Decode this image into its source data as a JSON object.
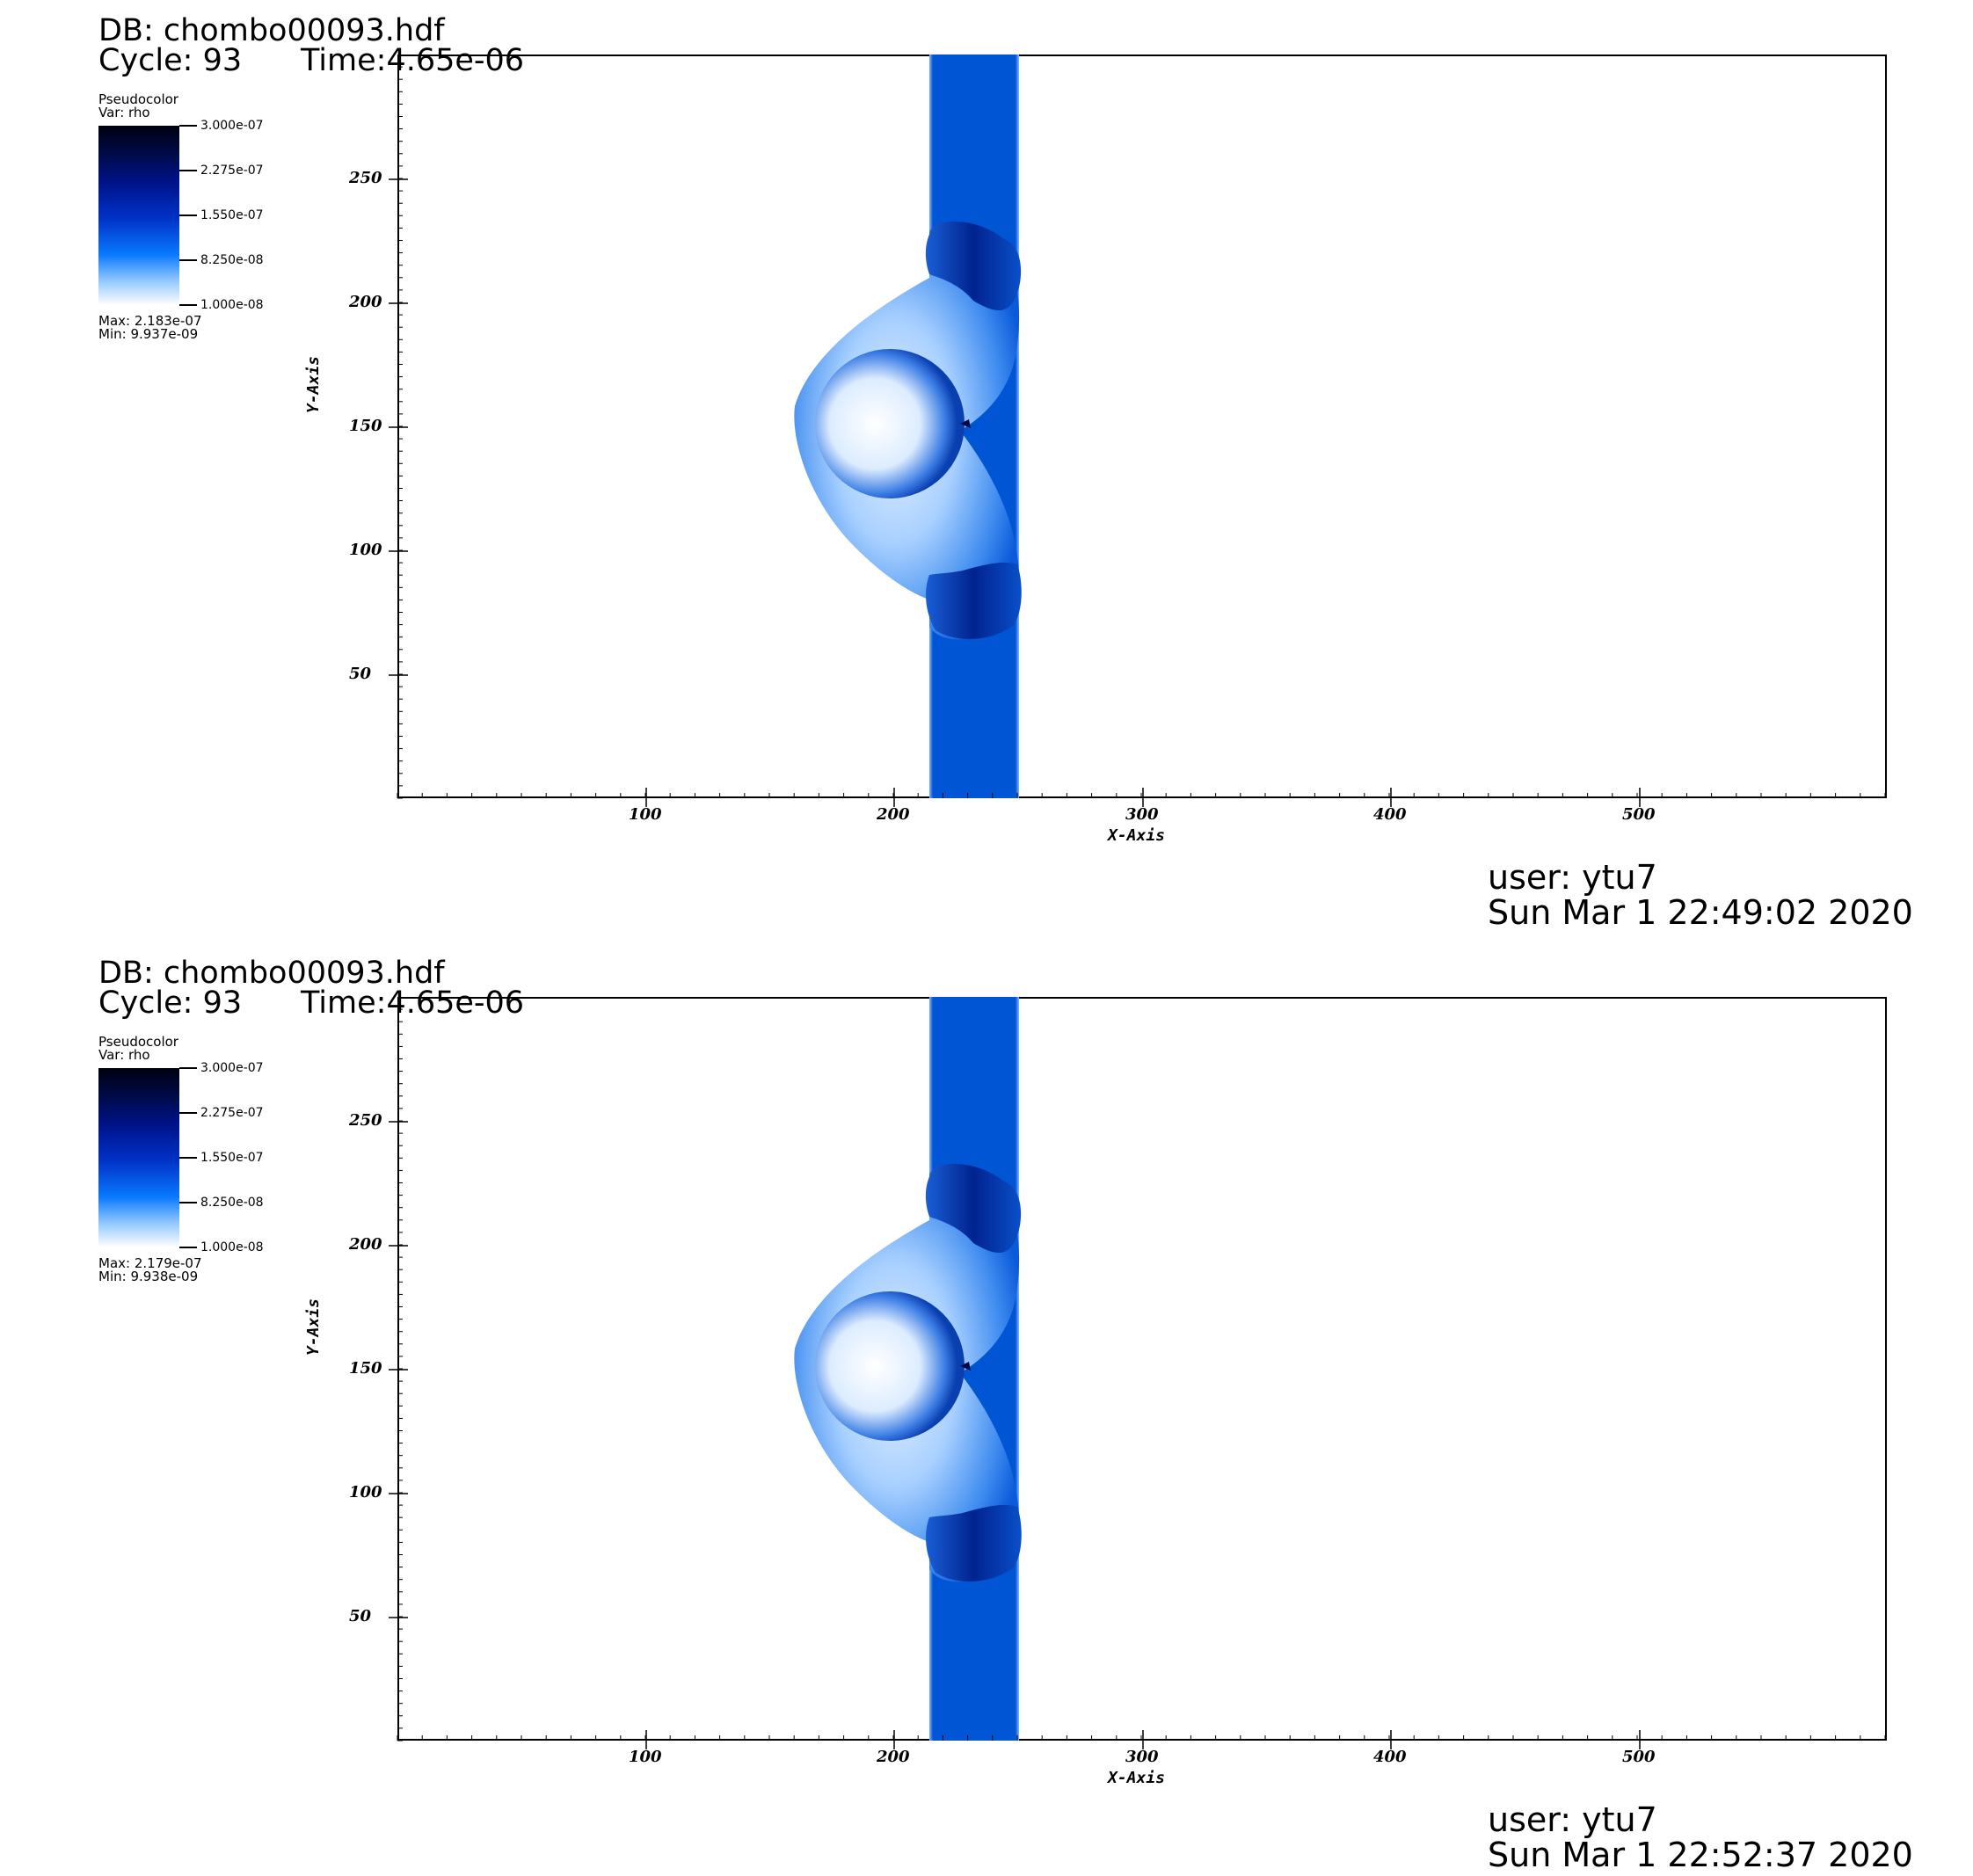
{
  "panels": [
    {
      "db": "DB: chombo00093.hdf",
      "cycle": "Cycle: 93",
      "time": "Time:4.65e-06",
      "legend": {
        "title": "Pseudocolor",
        "var": "Var: rho",
        "ticks": [
          "3.000e-07",
          "2.275e-07",
          "1.550e-07",
          "8.250e-08",
          "1.000e-08"
        ],
        "max": "Max: 2.183e-07",
        "min": "Min: 9.937e-09"
      },
      "user": "user: ytu7",
      "date": "Sun Mar  1 22:49:02 2020"
    },
    {
      "db": "DB: chombo00093.hdf",
      "cycle": "Cycle: 93",
      "time": "Time:4.65e-06",
      "legend": {
        "title": "Pseudocolor",
        "var": "Var: rho",
        "ticks": [
          "3.000e-07",
          "2.275e-07",
          "1.550e-07",
          "8.250e-08",
          "1.000e-08"
        ],
        "max": "Max: 2.179e-07",
        "min": "Min: 9.938e-09"
      },
      "user": "user: ytu7",
      "date": "Sun Mar  1 22:52:37 2020"
    }
  ],
  "axes": {
    "xlabel": "X-Axis",
    "ylabel": "Y-Axis",
    "xticks": [
      "100",
      "200",
      "300",
      "400",
      "500"
    ],
    "yticks": [
      "250",
      "200",
      "150",
      "100",
      "50"
    ]
  },
  "colors": {
    "slab": "#0055d4",
    "dark": "#000a46",
    "light": "#cfe6ff"
  }
}
